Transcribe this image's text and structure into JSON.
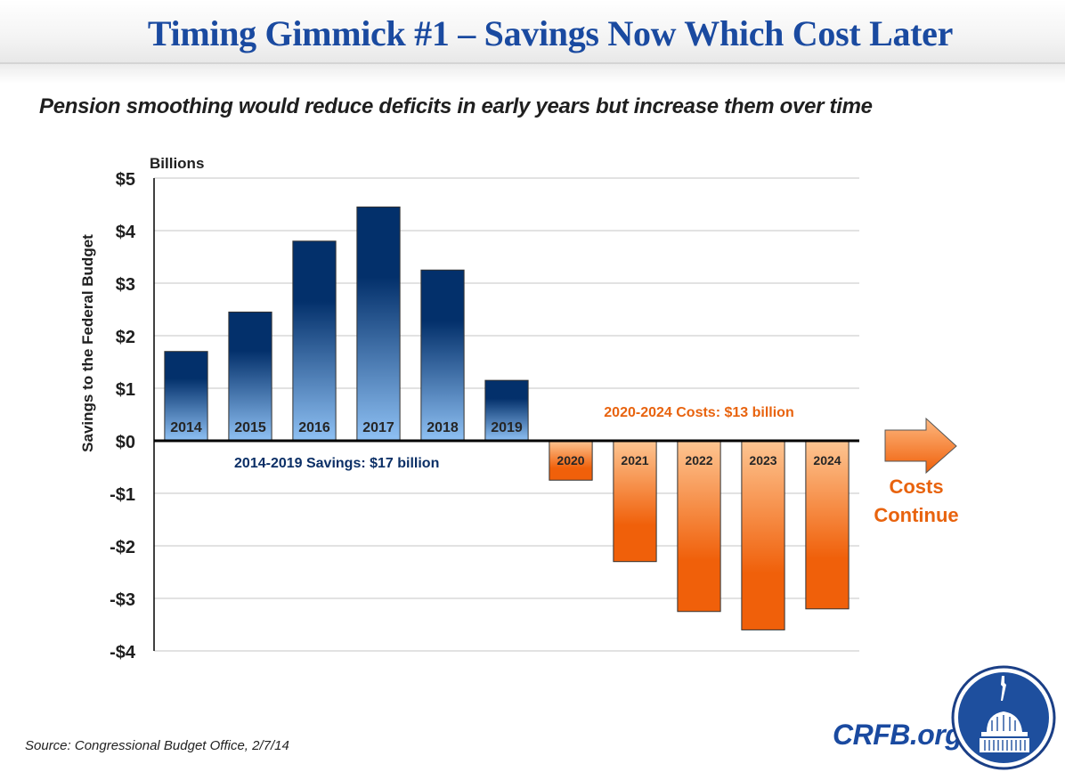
{
  "header": {
    "title": "Timing Gimmick #1 – Savings Now Which Cost Later",
    "subtitle": "Pension smoothing would reduce deficits in early years but increase them over time"
  },
  "footer": {
    "source": "Source:  Congressional Budget Office, 2/7/14",
    "brand": "CRFB.org",
    "logo_icon": "capitol-dome-seal-icon"
  },
  "colors": {
    "title": "#1a4aa0",
    "savings_dark": "#03306b",
    "savings_light": "#8fc1f4",
    "costs_dark": "#f0600a",
    "costs_light": "#fdc592",
    "savings_annotation": "#0b2f66",
    "costs_annotation": "#e8630e"
  },
  "chart_data": {
    "type": "bar",
    "title": "Timing Gimmick #1 – Savings Now Which Cost Later",
    "subtitle": "Pension smoothing would reduce deficits in early years but increase them over time",
    "ylabel": "Savings to the Federal Budget",
    "yunit_label": "Billions",
    "xlabel": "",
    "ylim": [
      -4,
      5
    ],
    "yticks": [
      5,
      4,
      3,
      2,
      1,
      0,
      -1,
      -2,
      -3,
      -4
    ],
    "ytick_labels": [
      "$5",
      "$4",
      "$3",
      "$2",
      "$1",
      "$0",
      "-$1",
      "-$2",
      "-$3",
      "-$4"
    ],
    "grid": true,
    "categories": [
      "2014",
      "2015",
      "2016",
      "2017",
      "2018",
      "2019",
      "2020",
      "2021",
      "2022",
      "2023",
      "2024"
    ],
    "values": [
      1.7,
      2.45,
      3.8,
      4.45,
      3.25,
      1.15,
      -0.75,
      -2.3,
      -3.25,
      -3.6,
      -3.2
    ],
    "annotations": [
      {
        "text": "2014-2019 Savings: $17 billion",
        "group": "savings"
      },
      {
        "text": "2020-2024 Costs: $13 billion",
        "group": "costs"
      },
      {
        "text": "Costs",
        "group": "continue"
      },
      {
        "text": "Continue",
        "group": "continue"
      }
    ],
    "arrow_icon": "right-arrow-icon"
  }
}
